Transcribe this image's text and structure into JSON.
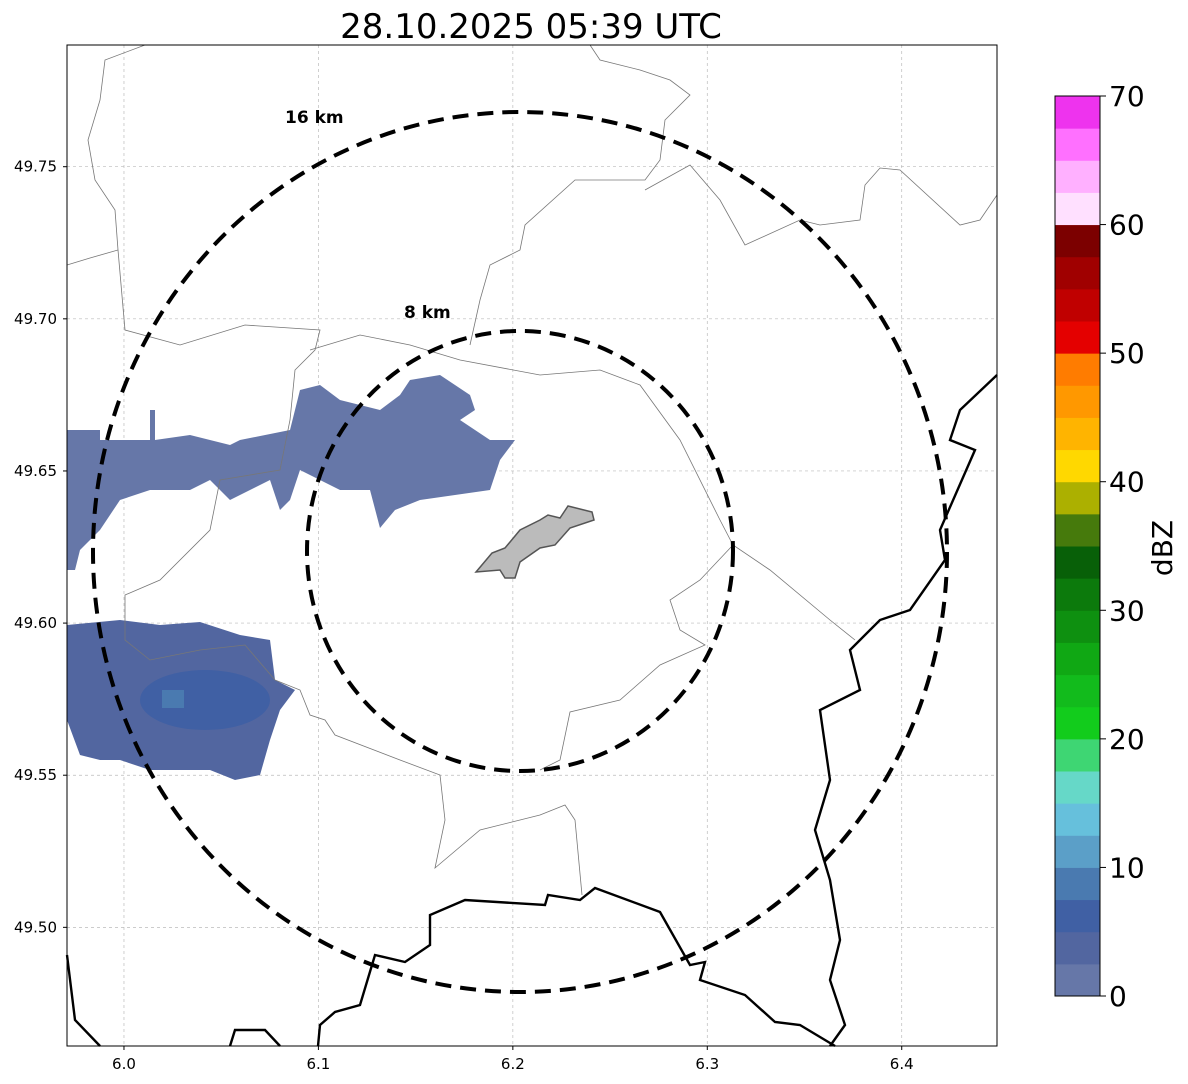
{
  "title": "28.10.2025 05:39 UTC",
  "map": {
    "lon_range": [
      5.9707,
      6.449
    ],
    "lat_range": [
      49.461,
      49.79
    ],
    "x_ticks": [
      {
        "v": 6.0,
        "label": "6.0"
      },
      {
        "v": 6.1,
        "label": "6.1"
      },
      {
        "v": 6.2,
        "label": "6.2"
      },
      {
        "v": 6.3,
        "label": "6.3"
      },
      {
        "v": 6.4,
        "label": "6.4"
      }
    ],
    "y_ticks": [
      {
        "v": 49.75,
        "label": "49.75"
      },
      {
        "v": 49.7,
        "label": "49.70"
      },
      {
        "v": 49.65,
        "label": "49.65"
      },
      {
        "v": 49.6,
        "label": "49.60"
      },
      {
        "v": 49.55,
        "label": "49.55"
      },
      {
        "v": 49.5,
        "label": "49.50"
      }
    ],
    "range_rings": [
      {
        "label": "16 km"
      },
      {
        "label": "8 km"
      }
    ]
  },
  "colorbar": {
    "label": "dBZ",
    "range": [
      0,
      70
    ],
    "ticks": [
      "0",
      "10",
      "20",
      "30",
      "40",
      "50",
      "60",
      "70"
    ],
    "colors": [
      "#6677a8",
      "#5266a0",
      "#4060a4",
      "#4a7ab0",
      "#5b9fc8",
      "#66c0dc",
      "#66d8c8",
      "#3ed673",
      "#12cc1c",
      "#12bb1c",
      "#10a814",
      "#0e9010",
      "#0c7a0c",
      "#086008",
      "#467a0c",
      "#acb000",
      "#ffd800",
      "#ffb400",
      "#ff9800",
      "#ff7c00",
      "#e40000",
      "#c00000",
      "#a00000",
      "#7c0000",
      "#ffe0ff",
      "#ffb0ff",
      "#ff70ff",
      "#ee33ee"
    ]
  }
}
